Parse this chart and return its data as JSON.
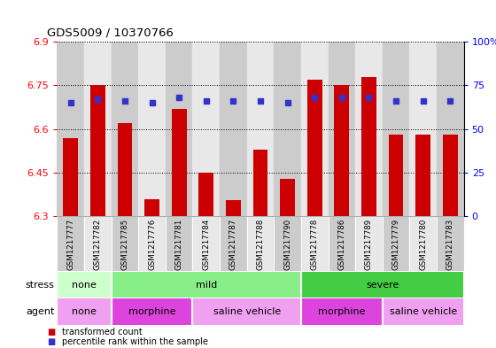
{
  "title": "GDS5009 / 10370766",
  "samples": [
    "GSM1217777",
    "GSM1217782",
    "GSM1217785",
    "GSM1217776",
    "GSM1217781",
    "GSM1217784",
    "GSM1217787",
    "GSM1217788",
    "GSM1217790",
    "GSM1217778",
    "GSM1217786",
    "GSM1217789",
    "GSM1217779",
    "GSM1217780",
    "GSM1217783"
  ],
  "transformed_count": [
    6.57,
    6.75,
    6.62,
    6.36,
    6.67,
    6.45,
    6.355,
    6.53,
    6.43,
    6.77,
    6.75,
    6.78,
    6.58,
    6.58,
    6.58
  ],
  "percentile_rank": [
    65,
    67,
    66,
    65,
    68,
    66,
    66,
    66,
    65,
    68,
    68,
    68,
    66,
    66,
    66
  ],
  "y_min": 6.3,
  "y_max": 6.9,
  "y_ticks": [
    6.3,
    6.45,
    6.6,
    6.75,
    6.9
  ],
  "y_tick_labels": [
    "6.3",
    "6.45",
    "6.6",
    "6.75",
    "6.9"
  ],
  "y2_ticks": [
    0,
    25,
    50,
    75,
    100
  ],
  "y2_tick_labels": [
    "0",
    "25",
    "50",
    "75",
    "100%"
  ],
  "bar_color": "#cc0000",
  "dot_color": "#3333cc",
  "bg_main": "#ffffff",
  "col_even": "#cccccc",
  "col_odd": "#e8e8e8",
  "stress_groups": [
    {
      "label": "none",
      "start": 0,
      "end": 2,
      "color": "#ccffcc"
    },
    {
      "label": "mild",
      "start": 2,
      "end": 9,
      "color": "#88ee88"
    },
    {
      "label": "severe",
      "start": 9,
      "end": 15,
      "color": "#44cc44"
    }
  ],
  "agent_groups": [
    {
      "label": "none",
      "start": 0,
      "end": 2,
      "color": "#f0a0f0"
    },
    {
      "label": "morphine",
      "start": 2,
      "end": 5,
      "color": "#dd44dd"
    },
    {
      "label": "saline vehicle",
      "start": 5,
      "end": 9,
      "color": "#f0a0f0"
    },
    {
      "label": "morphine",
      "start": 9,
      "end": 12,
      "color": "#dd44dd"
    },
    {
      "label": "saline vehicle",
      "start": 12,
      "end": 15,
      "color": "#f0a0f0"
    }
  ],
  "legend_items": [
    {
      "label": "transformed count",
      "color": "#cc0000"
    },
    {
      "label": "percentile rank within the sample",
      "color": "#3333cc"
    }
  ]
}
